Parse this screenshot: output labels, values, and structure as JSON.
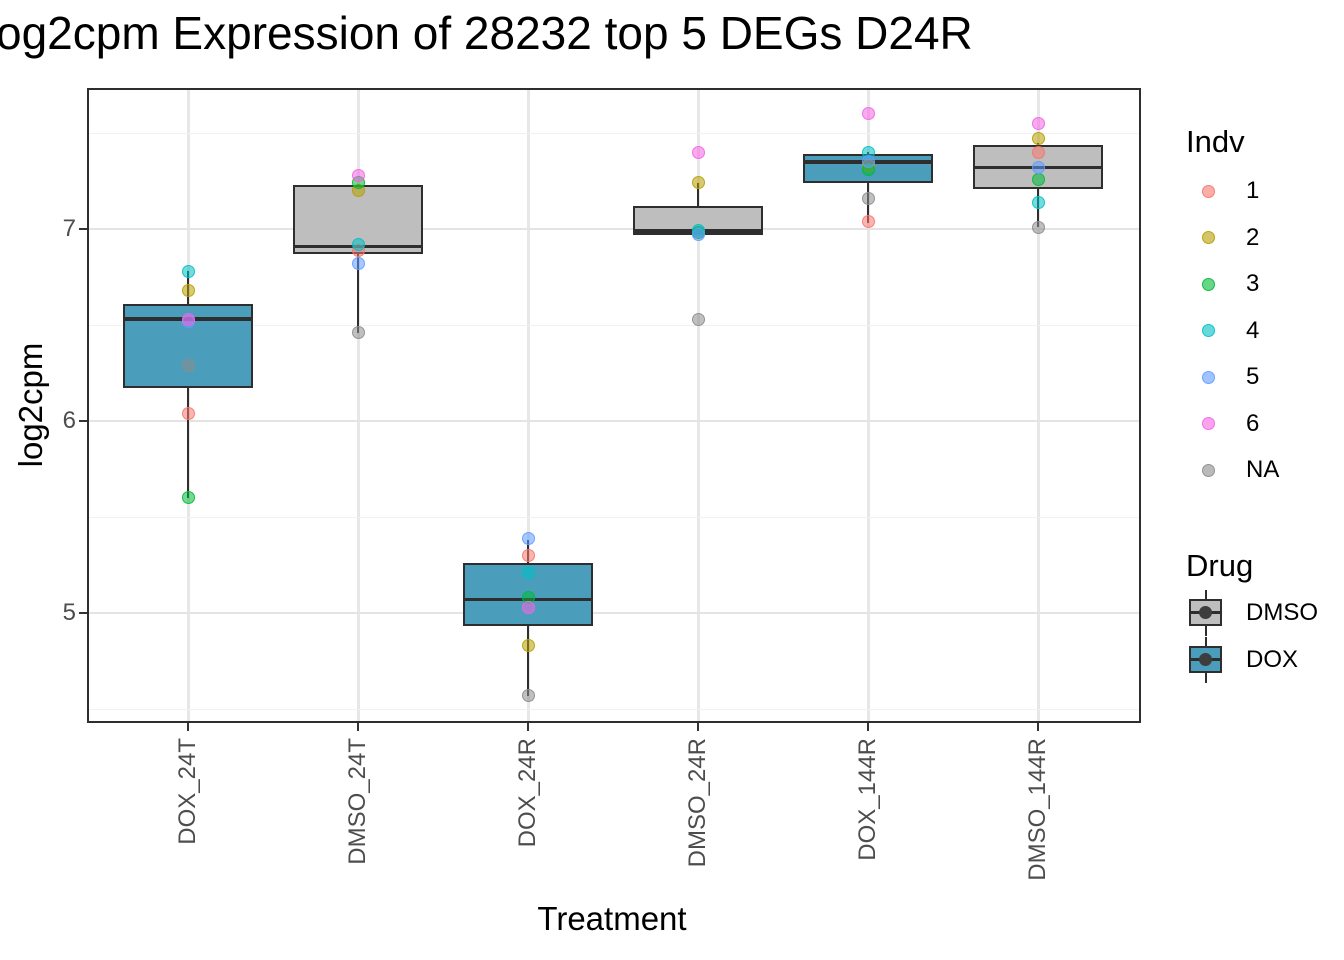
{
  "chart_data": {
    "type": "boxplot",
    "title": "og2cpm Expression of 28232 top 5 DEGs D24R",
    "xlabel": "Treatment",
    "ylabel": "log2cpm",
    "y_axis": {
      "ticks": [
        7,
        6,
        5
      ],
      "minor_ticks": [
        7.5,
        6.5,
        5.5,
        4.5
      ],
      "range": [
        4.43,
        7.72
      ],
      "grid": true
    },
    "categories": [
      "DOX_24T",
      "DMSO_24T",
      "DOX_24R",
      "DMSO_24R",
      "DOX_144R",
      "DMSO_144R"
    ],
    "indv_colors": {
      "1": "#F8766D",
      "2": "#B79F00",
      "3": "#00BA38",
      "4": "#00BFC4",
      "5": "#619CFF",
      "6": "#F564E3",
      "NA": "#8C8C8C"
    },
    "drug_colors": {
      "DMSO": "#BEBEBE",
      "DOX": "#4A9EBC"
    },
    "groups": [
      {
        "category": "DOX_24T",
        "drug": "DOX",
        "box": {
          "q1": 6.17,
          "median": 6.53,
          "q3": 6.61,
          "whisker_low": 5.6,
          "whisker_high": 6.78
        },
        "points": [
          {
            "indv": "NA",
            "value": 6.29
          },
          {
            "indv": "1",
            "value": 6.04
          },
          {
            "indv": "2",
            "value": 6.68
          },
          {
            "indv": "3",
            "value": 5.6
          },
          {
            "indv": "4",
            "value": 6.78
          },
          {
            "indv": "5",
            "value": 6.52
          },
          {
            "indv": "6",
            "value": 6.53
          }
        ]
      },
      {
        "category": "DMSO_24T",
        "drug": "DMSO",
        "box": {
          "q1": 6.87,
          "median": 6.91,
          "q3": 7.23,
          "whisker_low": 6.46,
          "whisker_high": 7.23
        },
        "points": [
          {
            "indv": "NA",
            "value": 6.46
          },
          {
            "indv": "1",
            "value": 6.89
          },
          {
            "indv": "2",
            "value": 7.2
          },
          {
            "indv": "3",
            "value": 7.24
          },
          {
            "indv": "4",
            "value": 6.92
          },
          {
            "indv": "5",
            "value": 6.82
          },
          {
            "indv": "6",
            "value": 7.28
          }
        ]
      },
      {
        "category": "DOX_24R",
        "drug": "DOX",
        "box": {
          "q1": 4.93,
          "median": 5.07,
          "q3": 5.26,
          "whisker_low": 4.57,
          "whisker_high": 5.38
        },
        "points": [
          {
            "indv": "NA",
            "value": 4.57
          },
          {
            "indv": "1",
            "value": 5.3
          },
          {
            "indv": "2",
            "value": 4.83
          },
          {
            "indv": "3",
            "value": 5.08
          },
          {
            "indv": "4",
            "value": 5.21
          },
          {
            "indv": "5",
            "value": 5.39
          },
          {
            "indv": "6",
            "value": 5.03
          }
        ]
      },
      {
        "category": "DMSO_24R",
        "drug": "DMSO",
        "box": {
          "q1": 6.97,
          "median": 6.99,
          "q3": 7.12,
          "whisker_low": 6.97,
          "whisker_high": 7.24
        },
        "points": [
          {
            "indv": "NA",
            "value": 6.53
          },
          {
            "indv": "1",
            "value": 6.98
          },
          {
            "indv": "2",
            "value": 7.24
          },
          {
            "indv": "3",
            "value": 6.98
          },
          {
            "indv": "4",
            "value": 6.99
          },
          {
            "indv": "5",
            "value": 6.97
          },
          {
            "indv": "6",
            "value": 7.4
          }
        ]
      },
      {
        "category": "DOX_144R",
        "drug": "DOX",
        "box": {
          "q1": 7.24,
          "median": 7.35,
          "q3": 7.39,
          "whisker_low": 7.03,
          "whisker_high": 7.4
        },
        "points": [
          {
            "indv": "NA",
            "value": 7.16
          },
          {
            "indv": "1",
            "value": 7.04
          },
          {
            "indv": "2",
            "value": 7.33
          },
          {
            "indv": "3",
            "value": 7.31
          },
          {
            "indv": "4",
            "value": 7.4
          },
          {
            "indv": "5",
            "value": 7.35
          },
          {
            "indv": "6",
            "value": 7.6
          }
        ]
      },
      {
        "category": "DMSO_144R",
        "drug": "DMSO",
        "box": {
          "q1": 7.21,
          "median": 7.32,
          "q3": 7.44,
          "whisker_low": 7.01,
          "whisker_high": 7.45
        },
        "points": [
          {
            "indv": "NA",
            "value": 7.01
          },
          {
            "indv": "1",
            "value": 7.4
          },
          {
            "indv": "2",
            "value": 7.47
          },
          {
            "indv": "3",
            "value": 7.26
          },
          {
            "indv": "4",
            "value": 7.14
          },
          {
            "indv": "5",
            "value": 7.32
          },
          {
            "indv": "6",
            "value": 7.55
          }
        ]
      }
    ],
    "legend": {
      "indv": {
        "title": "Indv",
        "entries": [
          "1",
          "2",
          "3",
          "4",
          "5",
          "6",
          "NA"
        ]
      },
      "drug": {
        "title": "Drug",
        "entries": [
          "DMSO",
          "DOX"
        ]
      }
    }
  }
}
